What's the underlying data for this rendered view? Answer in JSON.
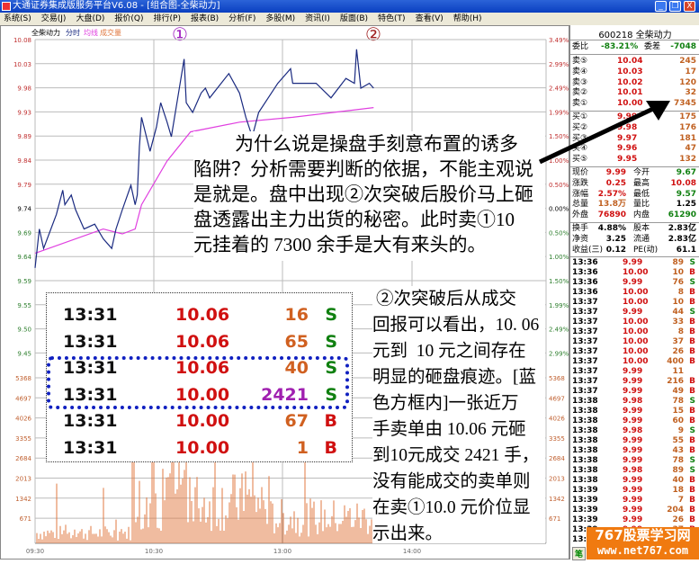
{
  "window": {
    "title": "大通证券集成版服务平台V6.08 - [组合图-全柴动力]",
    "minimize": "_",
    "restore": "❐",
    "close": "X"
  },
  "menu": [
    "系统(S)",
    "交易(J)",
    "大盘(D)",
    "报价(Q)",
    "排行(P)",
    "报表(B)",
    "分析(F)",
    "多股(M)",
    "资讯(I)",
    "版面(B)",
    "特色(T)",
    "查看(V)",
    "帮助(H)"
  ],
  "chart": {
    "stock_name": "全柴动力",
    "legend": [
      "分时",
      "均线",
      "成交量"
    ],
    "markers": [
      "①",
      "②"
    ],
    "price_ticks": [
      "10.08",
      "10.03",
      "9.98",
      "9.93",
      "9.89",
      "9.84",
      "9.79",
      "9.74",
      "9.69",
      "9.64",
      "9.59",
      "9.55",
      "9.50",
      "9.45"
    ],
    "pct_ticks": [
      "3.49%",
      "2.99%",
      "2.49%",
      "1.99%",
      "1.50%",
      "1.00%",
      "0.50%",
      "0.00%",
      "0.50%",
      "1.00%",
      "1.50%",
      "1.99%",
      "2.49%",
      "2.99%"
    ],
    "volume_ticks": [
      "5368",
      "4697",
      "4026",
      "3355",
      "2684",
      "2013",
      "1342",
      "671"
    ],
    "time_ticks": [
      "09:30",
      "10:30",
      "13:00",
      "14:00"
    ],
    "price_line": [
      [
        "09:30",
        9.61
      ],
      [
        "09:32",
        9.69
      ],
      [
        "09:34",
        9.65
      ],
      [
        "09:40",
        9.72
      ],
      [
        "09:43",
        9.77
      ],
      [
        "09:44",
        9.74
      ],
      [
        "09:47",
        9.76
      ],
      [
        "09:49",
        9.73
      ],
      [
        "09:53",
        9.69
      ],
      [
        "09:58",
        9.7
      ],
      [
        "10:02",
        9.67
      ],
      [
        "10:06",
        9.65
      ],
      [
        "10:08",
        9.69
      ],
      [
        "10:11",
        9.73
      ],
      [
        "10:15",
        9.78
      ],
      [
        "10:17",
        9.74
      ],
      [
        "10:18",
        9.76
      ],
      [
        "10:19",
        9.86
      ],
      [
        "10:20",
        9.92
      ],
      [
        "10:24",
        9.85
      ],
      [
        "10:27",
        9.9
      ],
      [
        "10:29",
        9.95
      ],
      [
        "10:32",
        9.91
      ],
      [
        "10:34",
        9.88
      ],
      [
        "10:37",
        9.96
      ],
      [
        "10:40",
        10.04
      ],
      [
        "10:41",
        9.95
      ],
      [
        "10:44",
        9.93
      ],
      [
        "10:48",
        9.97
      ],
      [
        "10:50",
        9.98
      ],
      [
        "10:52",
        9.96
      ],
      [
        "11:01",
        10.01
      ],
      [
        "11:06",
        9.97
      ],
      [
        "11:09",
        9.92
      ],
      [
        "11:12",
        9.88
      ],
      [
        "11:15",
        9.93
      ],
      [
        "11:24",
        9.99
      ],
      [
        "11:30",
        10.02
      ],
      [
        "13:01",
        9.99
      ],
      [
        "13:12",
        9.99
      ],
      [
        "13:19",
        9.96
      ],
      [
        "13:26",
        10.0
      ],
      [
        "13:30",
        9.99
      ],
      [
        "13:31",
        10.06
      ],
      [
        "13:33",
        9.98
      ],
      [
        "13:37",
        9.99
      ],
      [
        "13:39",
        9.98
      ]
    ],
    "avg_line": [
      [
        "09:30",
        9.64
      ],
      [
        "10:02",
        9.69
      ],
      [
        "10:11",
        9.68
      ],
      [
        "10:17",
        9.69
      ],
      [
        "10:20",
        9.74
      ],
      [
        "10:32",
        9.83
      ],
      [
        "10:43",
        9.89
      ],
      [
        "11:06",
        9.91
      ],
      [
        "13:01",
        9.92
      ],
      [
        "13:39",
        9.94
      ]
    ],
    "colors": {
      "price": "#1a2a80",
      "avg": "#e040e0",
      "volume": "#e07840",
      "up": "#d01010",
      "down": "#108010"
    }
  },
  "panel": {
    "code": "600218 全柴动力",
    "weibi": {
      "label": "委比",
      "value": "-83.21%",
      "label2": "委差",
      "value2": "-7048"
    },
    "sells": [
      {
        "label": "卖⑤",
        "price": "10.04",
        "vol": "245"
      },
      {
        "label": "卖④",
        "price": "10.03",
        "vol": "17"
      },
      {
        "label": "卖③",
        "price": "10.02",
        "vol": "120"
      },
      {
        "label": "卖②",
        "price": "10.01",
        "vol": "32"
      },
      {
        "label": "卖①",
        "price": "10.00",
        "vol": "7345"
      }
    ],
    "buys": [
      {
        "label": "买①",
        "price": "9.99",
        "vol": "175"
      },
      {
        "label": "买②",
        "price": "9.98",
        "vol": "176"
      },
      {
        "label": "买③",
        "price": "9.97",
        "vol": "181"
      },
      {
        "label": "买④",
        "price": "9.96",
        "vol": "47"
      },
      {
        "label": "买⑤",
        "price": "9.95",
        "vol": "132"
      }
    ],
    "stats": [
      [
        "现价",
        "9.99",
        "今开",
        "9.67"
      ],
      [
        "涨跌",
        "0.25",
        "最高",
        "10.08"
      ],
      [
        "涨幅",
        "2.57%",
        "最低",
        "9.57"
      ],
      [
        "总量",
        "13.8万",
        "量比",
        "1.25"
      ],
      [
        "外盘",
        "76890",
        "内盘",
        "61290"
      ]
    ],
    "stats2": [
      [
        "换手",
        "4.88%",
        "股本",
        "2.83亿"
      ],
      [
        "净资",
        "3.25",
        "流通",
        "2.83亿"
      ],
      [
        "收益(三)",
        "0.12",
        "PE(动)",
        "61.1"
      ]
    ],
    "ticks": [
      [
        "13:36",
        "9.99",
        "89",
        "S"
      ],
      [
        "13:36",
        "10.00",
        "10",
        "B"
      ],
      [
        "13:36",
        "9.99",
        "76",
        "S"
      ],
      [
        "13:36",
        "10.00",
        "8",
        "B"
      ],
      [
        "13:37",
        "10.00",
        "10",
        "B"
      ],
      [
        "13:37",
        "9.99",
        "44",
        "S"
      ],
      [
        "13:37",
        "10.00",
        "33",
        "B"
      ],
      [
        "13:37",
        "10.00",
        "8",
        "B"
      ],
      [
        "13:37",
        "10.00",
        "37",
        "B"
      ],
      [
        "13:37",
        "10.00",
        "26",
        "B"
      ],
      [
        "13:37",
        "10.00",
        "400",
        "B"
      ],
      [
        "13:37",
        "9.99",
        "11",
        ""
      ],
      [
        "13:37",
        "9.99",
        "216",
        "B"
      ],
      [
        "13:37",
        "9.99",
        "49",
        "B"
      ],
      [
        "13:38",
        "9.98",
        "78",
        "S"
      ],
      [
        "13:38",
        "9.99",
        "15",
        "B"
      ],
      [
        "13:38",
        "9.99",
        "60",
        "B"
      ],
      [
        "13:38",
        "9.98",
        "9",
        "S"
      ],
      [
        "13:38",
        "9.99",
        "55",
        "B"
      ],
      [
        "13:38",
        "9.99",
        "43",
        "B"
      ],
      [
        "13:38",
        "9.99",
        "78",
        "S"
      ],
      [
        "13:38",
        "9.98",
        "89",
        "S"
      ],
      [
        "13:38",
        "9.99",
        "40",
        "B"
      ],
      [
        "13:39",
        "9.99",
        "18",
        "B"
      ],
      [
        "13:39",
        "9.99",
        "7",
        "B"
      ],
      [
        "13:39",
        "9.99",
        "204",
        "B"
      ],
      [
        "13:39",
        "9.99",
        "26",
        "B"
      ],
      [
        "13:39",
        "9.99",
        "37",
        "B"
      ],
      [
        "13:39",
        "9.99",
        "10",
        "S"
      ]
    ],
    "tab": "笔"
  },
  "inset": [
    [
      "13:31",
      "10.06",
      "16",
      "S"
    ],
    [
      "13:31",
      "10.06",
      "65",
      "S"
    ],
    [
      "13:31",
      "10.06",
      "40",
      "S"
    ],
    [
      "13:31",
      "10.00",
      "2421",
      "S"
    ],
    [
      "13:31",
      "10.00",
      "67",
      "B"
    ],
    [
      "13:31",
      "10.00",
      "1",
      "B"
    ]
  ],
  "annotation_top": [
    "为什么说是操盘手刻意布置的诱多",
    "陷阱？分析需要判断的依据，不能主观说",
    "是就是。盘中出现②次突破后股价马上砸",
    "盘透露出主力出货的秘密。此时卖①10",
    "元挂着的 7300 余手是大有来头的。"
  ],
  "annotation_right": [
    "②次突破后从成交",
    "回报可以看出，10. 06",
    "元到  10 元之间存在",
    "明显的砸盘痕迹。[蓝",
    "色方框内]一张近万",
    "手卖单由 10.06 元砸",
    "到10元成交 2421 手，",
    "没有能成交的卖单则",
    "在卖①10.0 元价位显",
    "示出来。"
  ],
  "watermark": {
    "line1": "767股票学习网",
    "line2": "www.net767.com"
  }
}
